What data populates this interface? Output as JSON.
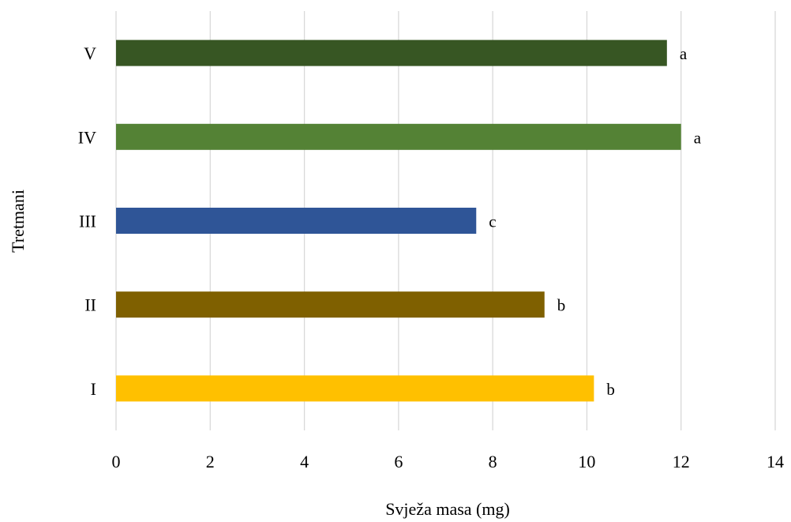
{
  "chart_data": {
    "type": "bar",
    "orientation": "horizontal",
    "title": "",
    "xlabel": "Svježa masa (mg)",
    "ylabel": "Tretmani",
    "xlim": [
      0,
      14
    ],
    "x_ticks": [
      0,
      2,
      4,
      6,
      8,
      10,
      12,
      14
    ],
    "grid": "vertical major gridlines",
    "legend": "none",
    "categories": [
      "I",
      "II",
      "III",
      "IV",
      "V"
    ],
    "values": [
      10.15,
      9.1,
      7.65,
      12.0,
      11.7
    ],
    "significance_labels": [
      "b",
      "b",
      "c",
      "a",
      "a"
    ],
    "colors": [
      "#FFC000",
      "#7F6000",
      "#2F5597",
      "#548235",
      "#375623"
    ]
  }
}
